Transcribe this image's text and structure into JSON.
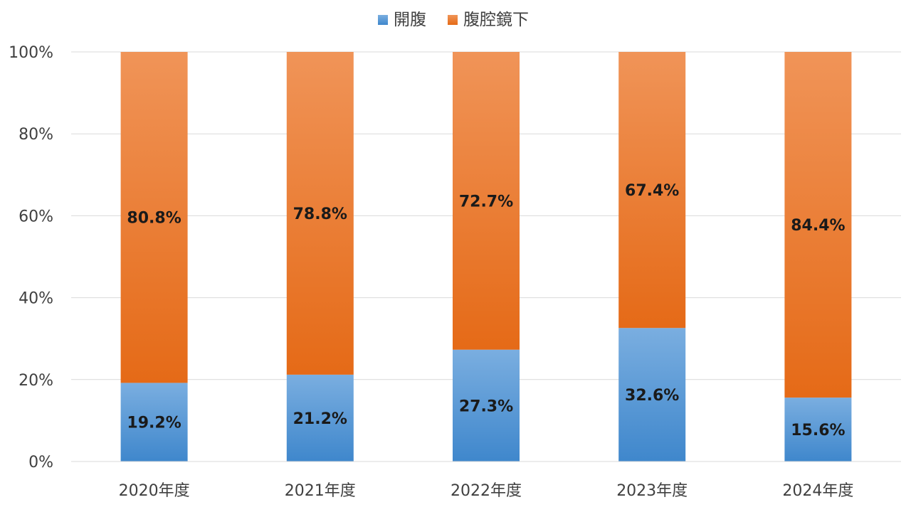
{
  "chart_data": {
    "type": "bar",
    "stacked": true,
    "percent": true,
    "categories": [
      "2020年度",
      "2021年度",
      "2022年度",
      "2023年度",
      "2024年度"
    ],
    "series": [
      {
        "name": "開腹",
        "color": "#5b9bd5",
        "values": [
          19.2,
          21.2,
          27.3,
          32.6,
          15.6
        ],
        "labels": [
          "19.2%",
          "21.2%",
          "27.3%",
          "32.6%",
          "15.6%"
        ]
      },
      {
        "name": "腹腔鏡下",
        "color": "#ed7d31",
        "values": [
          80.8,
          78.8,
          72.7,
          67.4,
          84.4
        ],
        "labels": [
          "80.8%",
          "78.8%",
          "72.7%",
          "67.4%",
          "84.4%"
        ]
      }
    ],
    "yticks": [
      "0%",
      "20%",
      "40%",
      "60%",
      "80%",
      "100%"
    ],
    "ylim": [
      0,
      100
    ],
    "grid": true,
    "legend_position": "top"
  }
}
